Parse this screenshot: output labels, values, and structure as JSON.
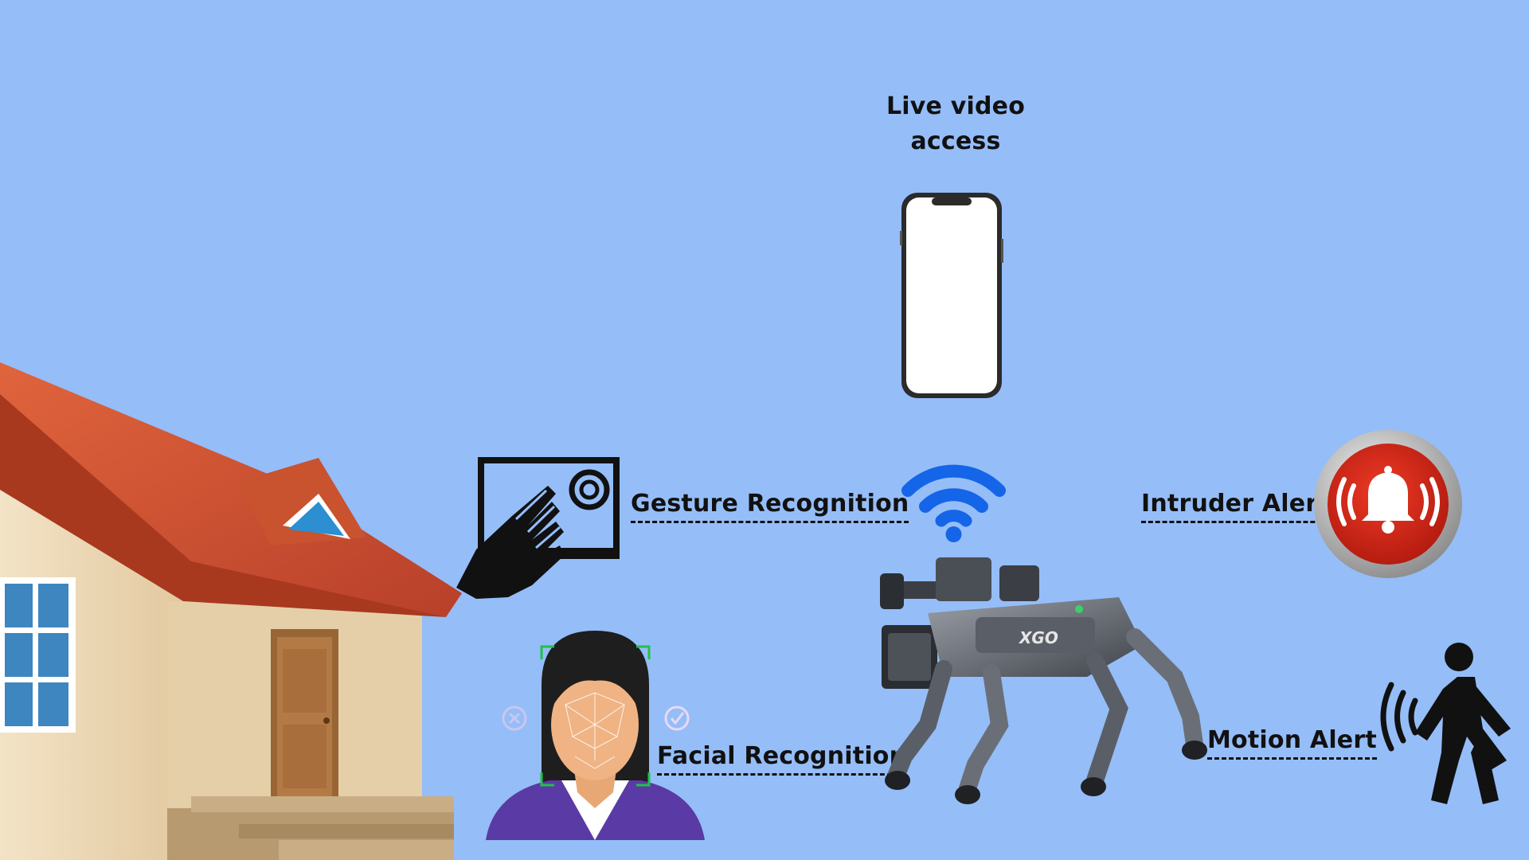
{
  "labels": {
    "live_video_line1": "Live video",
    "live_video_line2": "access",
    "gesture": "Gesture Recognition",
    "intruder": "Intruder Alert",
    "facial": "Facial Recognition",
    "motion": "Motion Alert",
    "robot_brand": "XGO"
  },
  "colors": {
    "background": "#95bdf8",
    "wifi": "#1565e8",
    "alarm_red": "#d42a1a",
    "roof": "#c8502f"
  },
  "icons": [
    "house-icon",
    "phone-icon",
    "wifi-icon",
    "gesture-screen-icon",
    "alarm-bell-icon",
    "face-scan-icon",
    "robot-dog-icon",
    "walking-person-icon"
  ]
}
